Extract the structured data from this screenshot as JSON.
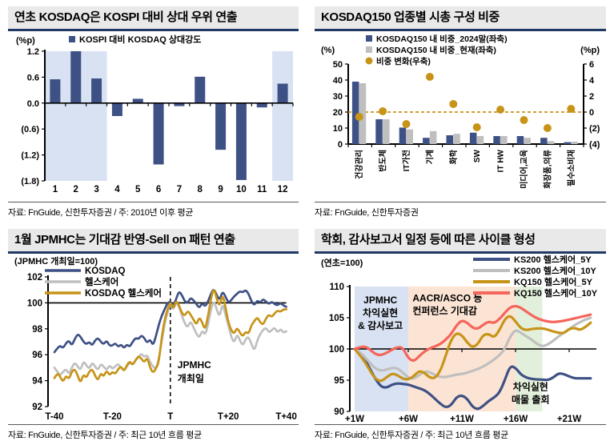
{
  "colors": {
    "navy": "#3E5185",
    "gray": "#BFBFBF",
    "gold": "#C79418",
    "red": "#F4655C",
    "band_blue": "#D9E2F2",
    "band_orange": "#FCE4D4",
    "band_green": "#E2EFDA",
    "ann_blue": "#4472C4",
    "ann_orange": "#ED7D31",
    "ann_green": "#6FAD46",
    "axis": "#000000"
  },
  "chart_data": [
    {
      "type": "bar",
      "title": "연초 KOSDAQ은 KOSPI 대비 상대 우위 연출",
      "unit_left": "(%p)",
      "legend": [
        {
          "label": "KOSPI 대비 KOSDAQ 상대강도",
          "marker": "square",
          "color": "navy"
        }
      ],
      "categories": [
        "1",
        "2",
        "3",
        "4",
        "5",
        "6",
        "7",
        "8",
        "9",
        "10",
        "11",
        "12"
      ],
      "values": [
        0.55,
        1.2,
        0.57,
        -0.3,
        0.1,
        -1.42,
        -0.07,
        0.61,
        -1.08,
        -1.78,
        -0.1,
        0.45
      ],
      "ylim": [
        -1.8,
        1.2
      ],
      "ytick_values": [
        1.2,
        0.6,
        0,
        -0.6,
        -1.2,
        -1.8
      ],
      "ytick_labels": [
        "1.2",
        "0.6",
        "0.0",
        "(0.6)",
        "(1.2)",
        "(1.8)"
      ],
      "highlight_bands": [
        {
          "from_cat": 0,
          "to_cat": 2
        },
        {
          "from_cat": 11,
          "to_cat": 11
        }
      ],
      "bar_color": "navy",
      "band_color": "band_blue",
      "source": "자료: FnGuide, 신한투자증권 / 주: 2010년 이후 평균"
    },
    {
      "type": "bar-dot-dual",
      "title": "KOSDAQ150 업종별 시총 구성 비중",
      "unit_left": "(%)",
      "unit_right": "(%p)",
      "legend": [
        {
          "label": "KOSDAQ150 내 비중_2024말(좌축)",
          "marker": "square",
          "color": "navy"
        },
        {
          "label": "KOSDAQ150 내 비중_현재(좌축)",
          "marker": "square",
          "color": "gray"
        },
        {
          "label": "비중 변화(우축)",
          "marker": "dot",
          "color": "gold"
        }
      ],
      "categories": [
        "건강관리",
        "반도체",
        "IT가전",
        "기계",
        "화학",
        "SW",
        "IT HW",
        "미디어,교육",
        "화장품,의류",
        "필수소비재"
      ],
      "series": [
        {
          "name": "KOSDAQ150 내 비중_2024말",
          "color": "navy",
          "values": [
            39,
            15.5,
            10.3,
            3.9,
            5.5,
            7.1,
            5.0,
            5.0,
            3.9,
            1.2
          ]
        },
        {
          "name": "KOSDAQ150 내 비중_현재",
          "color": "gray",
          "values": [
            38,
            15.5,
            9.2,
            8.1,
            6.4,
            5.0,
            5.0,
            3.9,
            1.8,
            1.5
          ]
        }
      ],
      "dot_series": {
        "name": "비중 변화",
        "color": "gold",
        "values": [
          -0.6,
          0.1,
          -1.5,
          4.4,
          1.0,
          -1.9,
          0.3,
          -1.0,
          -2.0,
          0.4
        ]
      },
      "ylim_left": [
        0,
        50
      ],
      "ytick_left_values": [
        0,
        10,
        20,
        30,
        40,
        50
      ],
      "ytick_left_labels": [
        "0",
        "10",
        "20",
        "30",
        "40",
        "50"
      ],
      "ylim_right": [
        -4,
        6
      ],
      "ytick_right_values": [
        6,
        4,
        2,
        0,
        -2,
        -4
      ],
      "ytick_right_labels": [
        "6",
        "4",
        "2",
        "0",
        "(2)",
        "(4)"
      ],
      "zero_line_right": 0,
      "source": "자료: FnGuide, 신한투자증권"
    },
    {
      "type": "line",
      "title": "1월 JPMHC는 기대감 반영-Sell on 패턴 연출",
      "subtitle": "(JPMHC 개최일=100)",
      "ylim": [
        92,
        102
      ],
      "ytick_values": [
        92,
        94,
        96,
        98,
        100,
        102
      ],
      "ytick_labels": [
        "92",
        "94",
        "96",
        "98",
        "100",
        "102"
      ],
      "xlim": [
        -40,
        40
      ],
      "xticks": [
        {
          "x": -40,
          "label": "T-40"
        },
        {
          "x": -20,
          "label": "T-20"
        },
        {
          "x": 0,
          "label": "T"
        },
        {
          "x": 20,
          "label": "T+20"
        },
        {
          "x": 40,
          "label": "T+40"
        }
      ],
      "hline": 100,
      "vline": {
        "x": 0,
        "label_lines": [
          "JPMHC",
          "개최일"
        ]
      },
      "series": [
        {
          "name": "KOSDAQ",
          "color": "navy",
          "x_start": -40,
          "x_step": 1,
          "values": [
            96.2,
            96.5,
            96.7,
            96.5,
            96.9,
            97.1,
            96.7,
            97.2,
            97.6,
            97.4,
            97.0,
            96.8,
            97.0,
            96.7,
            97.1,
            97.3,
            97.0,
            96.8,
            97.1,
            96.7,
            96.7,
            96.9,
            96.6,
            96.8,
            96.5,
            96.8,
            96.6,
            97.0,
            97.3,
            97.2,
            97.5,
            97.3,
            96.9,
            97.2,
            96.7,
            97.4,
            98.3,
            99.0,
            99.5,
            100.0,
            100.1,
            99.7,
            100.3,
            100.9,
            100.6,
            100.1,
            100.0,
            100.4,
            100.2,
            99.9,
            99.6,
            100.0,
            99.7,
            100.1,
            100.7,
            101.1,
            100.6,
            100.2,
            100.9,
            100.5,
            100.0,
            100.2,
            100.5,
            100.7,
            100.9,
            100.8,
            101.0,
            100.7,
            100.1,
            99.8,
            100.2,
            100.0,
            100.3,
            100.1,
            99.9,
            100.1,
            99.9,
            99.8,
            100.0,
            99.8,
            99.7
          ]
        },
        {
          "name": "헬스케어",
          "color": "gray",
          "x_start": -40,
          "x_step": 1,
          "values": [
            95.0,
            94.7,
            94.4,
            94.7,
            94.9,
            94.5,
            95.0,
            95.4,
            95.1,
            94.8,
            95.5,
            95.2,
            94.9,
            95.4,
            95.1,
            94.8,
            95.3,
            95.1,
            94.8,
            95.2,
            94.9,
            95.1,
            95.3,
            95.0,
            94.8,
            95.1,
            95.4,
            95.2,
            95.6,
            95.8,
            96.1,
            95.8,
            96.0,
            95.4,
            95.1,
            94.9,
            95.6,
            97.0,
            98.4,
            99.2,
            100.0,
            99.4,
            100.1,
            99.7,
            99.0,
            98.4,
            98.1,
            98.6,
            98.1,
            97.6,
            97.3,
            97.9,
            97.5,
            98.3,
            99.5,
            100.2,
            99.5,
            98.9,
            100.0,
            99.1,
            98.3,
            97.4,
            96.9,
            97.6,
            97.1,
            96.7,
            97.2,
            97.4,
            96.8,
            96.3,
            97.1,
            97.6,
            97.9,
            98.1,
            97.7,
            97.9,
            98.1,
            97.7,
            98.0,
            97.7,
            97.8
          ]
        },
        {
          "name": "KOSDAQ 헬스케어",
          "color": "gold",
          "x_start": -40,
          "x_step": 1,
          "values": [
            94.2,
            94.6,
            94.3,
            93.9,
            94.4,
            94.1,
            94.7,
            94.9,
            94.4,
            93.8,
            94.5,
            94.2,
            94.7,
            94.9,
            94.4,
            94.0,
            94.6,
            94.3,
            94.8,
            94.4,
            94.7,
            94.5,
            94.9,
            95.1,
            94.7,
            95.2,
            95.5,
            95.2,
            95.6,
            95.9,
            95.7,
            95.4,
            95.8,
            95.0,
            94.6,
            94.9,
            95.4,
            97.3,
            98.7,
            99.5,
            100.1,
            99.5,
            100.2,
            99.8,
            99.2,
            99.0,
            99.4,
            99.1,
            98.7,
            98.3,
            98.9,
            98.5,
            97.9,
            99.0,
            100.3,
            101.2,
            100.3,
            99.7,
            100.7,
            99.7,
            98.5,
            97.9,
            97.6,
            98.1,
            97.7,
            97.4,
            97.8,
            97.6,
            98.3,
            98.6,
            98.9,
            98.5,
            98.3,
            98.8,
            99.1,
            98.9,
            99.2,
            99.4,
            99.3,
            99.5,
            99.5
          ]
        }
      ],
      "source": "자료: FnGuide, 신한투자증권 / 주: 최근 10년 흐름 평균"
    },
    {
      "type": "line-banded",
      "title": "학회, 감사보고서 일정 등에 따른 사이클 형성",
      "subtitle": "(연초=100)",
      "ylim": [
        90,
        110
      ],
      "ytick_values": [
        90,
        95,
        100,
        105,
        110
      ],
      "ytick_labels": [
        "90",
        "95",
        "100",
        "105",
        "110"
      ],
      "xlim": [
        1,
        23
      ],
      "xticks": [
        {
          "x": 1,
          "label": "+1W"
        },
        {
          "x": 6,
          "label": "+6W"
        },
        {
          "x": 11,
          "label": "+11W"
        },
        {
          "x": 16,
          "label": "+16W"
        },
        {
          "x": 21,
          "label": "+21W"
        }
      ],
      "hline": 100,
      "bands": [
        {
          "from": 1,
          "to": 6,
          "color": "band_blue",
          "text_lines": [
            "JPMHC",
            "차익실현",
            "& 감사보고"
          ],
          "text_color": "ann_blue",
          "text_x": 3.4,
          "text_y": 107.3,
          "anchor": "middle"
        },
        {
          "from": 6,
          "to": 16,
          "color": "band_orange",
          "text_lines": [
            "AACR/ASCO 등",
            "컨퍼런스 기대감"
          ],
          "text_color": "ann_orange",
          "text_x": 6.4,
          "text_y": 107.6,
          "anchor": "start"
        },
        {
          "from": 16,
          "to": 18.5,
          "color": "band_green",
          "text_lines": [
            "차익실현",
            "매물 출회"
          ],
          "text_color": "ann_green",
          "text_x": 17.4,
          "text_y": 93.4,
          "anchor": "middle"
        }
      ],
      "series": [
        {
          "name": "KS200 헬스케어_5Y",
          "color": "navy",
          "x_start": 1,
          "x_step": 0.5,
          "values": [
            100,
            99.3,
            98.2,
            96.6,
            95.0,
            93.9,
            93.8,
            94.3,
            94.5,
            94.4,
            94.3,
            94.0,
            93.7,
            93.4,
            92.8,
            92.0,
            91.2,
            90.6,
            91.0,
            92.3,
            92.6,
            92.0,
            90.7,
            90.3,
            90.9,
            91.7,
            92.2,
            93.0,
            95.0,
            97.3,
            97.0,
            95.9,
            95.4,
            95.2,
            95.1,
            95.1,
            95.0,
            95.4,
            96.1,
            96.0,
            95.6,
            95.3,
            95.3,
            95.3,
            95.3
          ]
        },
        {
          "name": "KS200 헬스케어_10Y",
          "color": "gray",
          "x_start": 1,
          "x_step": 0.5,
          "values": [
            100,
            99.5,
            98.6,
            97.6,
            96.8,
            96.5,
            96.7,
            97.0,
            96.9,
            96.2,
            95.4,
            95.2,
            95.8,
            96.4,
            96.3,
            95.8,
            95.5,
            95.5,
            95.7,
            95.9,
            96.0,
            96.2,
            96.5,
            96.8,
            97.2,
            97.7,
            98.3,
            99.0,
            100.0,
            102.0,
            103.1,
            102.6,
            102.0,
            101.5,
            100.8,
            100.4,
            100.7,
            101.3,
            102.0,
            102.6,
            103.2,
            103.8,
            104.3,
            104.7,
            105.0
          ]
        },
        {
          "name": "KQ150 헬스케어_5Y",
          "color": "gold",
          "x_start": 1,
          "x_step": 0.5,
          "values": [
            100,
            99.0,
            97.8,
            96.3,
            95.1,
            94.8,
            95.5,
            96.1,
            95.8,
            95.2,
            95.1,
            95.6,
            96.5,
            96.2,
            95.4,
            95.3,
            96.5,
            99.0,
            101.5,
            102.6,
            102.2,
            101.0,
            100.2,
            100.8,
            102.3,
            102.4,
            101.8,
            103.0,
            104.8,
            105.4,
            104.4,
            103.3,
            103.0,
            103.2,
            103.3,
            103.3,
            103.1,
            102.8,
            102.6,
            102.5,
            103.2,
            103.4,
            103.0,
            103.5,
            104.2
          ]
        },
        {
          "name": "KQ150 헬스케어_10Y",
          "color": "red",
          "x_start": 1,
          "x_step": 0.5,
          "values": [
            100,
            100.3,
            100.4,
            99.8,
            99.1,
            99.0,
            99.4,
            99.9,
            100.3,
            100.2,
            98.5,
            98.0,
            98.8,
            99.6,
            100.1,
            100.4,
            100.8,
            101.5,
            102.4,
            103.8,
            104.6,
            104.2,
            103.4,
            103.2,
            103.9,
            104.4,
            104.1,
            104.8,
            105.8,
            106.7,
            106.9,
            106.6,
            106.0,
            105.4,
            104.9,
            104.6,
            104.4,
            104.3,
            104.4,
            104.5,
            104.7,
            104.9,
            105.1,
            105.3,
            105.5
          ]
        }
      ],
      "source": "자료: FnGuide, 신한투자증권 / 주: 최근 10년 흐름 평균"
    }
  ]
}
